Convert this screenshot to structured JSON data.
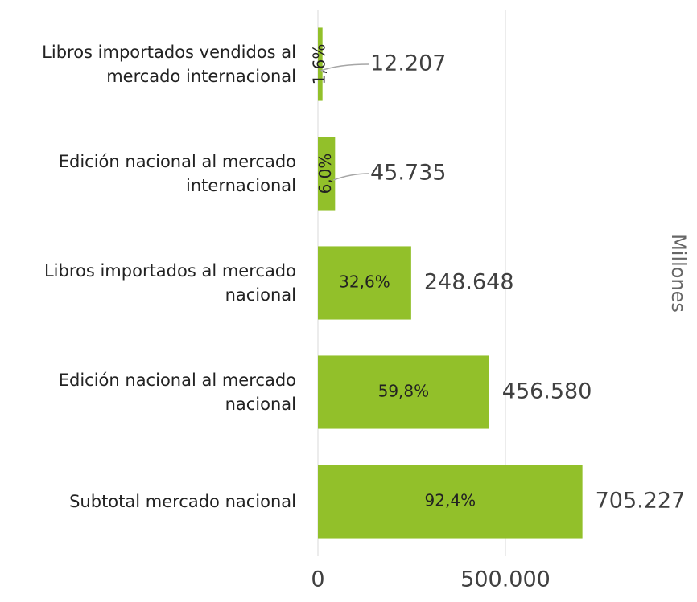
{
  "chart_data": {
    "type": "bar",
    "orientation": "horizontal",
    "categories": [
      "Libros importados vendidos al mercado internacional",
      "Edición nacional al mercado internacional",
      "Libros importados al mercado nacional",
      "Edición nacional al mercado nacional",
      "Subtotal mercado nacional"
    ],
    "values": [
      12207,
      45735,
      248648,
      456580,
      705227
    ],
    "value_labels": [
      "12.207",
      "45.735",
      "248.648",
      "456.580",
      "705.227"
    ],
    "percent_values": [
      1.6,
      6.0,
      32.6,
      59.8,
      92.4
    ],
    "percent_labels": [
      "1,6%",
      "6,0%",
      "32,6%",
      "59,8%",
      "92,4%"
    ],
    "color": "#92c02a",
    "xlim": [
      0,
      1000000
    ],
    "xticks": [
      0,
      {
        "value": 500000,
        "label": "500.000"
      }
    ],
    "xlabel": "Millones",
    "grid": true
  }
}
